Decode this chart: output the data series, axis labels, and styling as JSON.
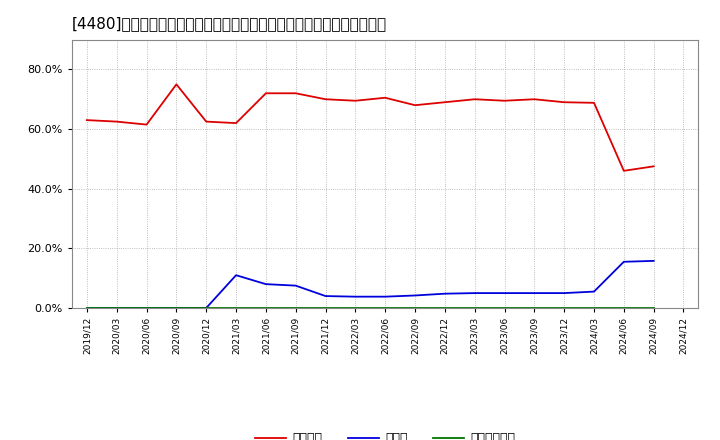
{
  "title": "[4480]　自己資本、のれん、繰延税金資産の総資産に対する比率の推移",
  "x_labels": [
    "2019/12",
    "2020/03",
    "2020/06",
    "2020/09",
    "2020/12",
    "2021/03",
    "2021/06",
    "2021/09",
    "2021/12",
    "2022/03",
    "2022/06",
    "2022/09",
    "2022/12",
    "2023/03",
    "2023/06",
    "2023/09",
    "2023/12",
    "2024/03",
    "2024/06",
    "2024/09",
    "2024/12"
  ],
  "jikoshihon": [
    0.63,
    0.625,
    0.615,
    0.75,
    0.625,
    0.62,
    0.72,
    0.72,
    0.7,
    0.695,
    0.705,
    0.68,
    0.69,
    0.7,
    0.695,
    0.7,
    0.69,
    0.688,
    0.46,
    0.475,
    null
  ],
  "noren": [
    0.0,
    0.0,
    0.0,
    0.0,
    0.0,
    0.11,
    0.08,
    0.075,
    0.04,
    0.038,
    0.038,
    0.042,
    0.048,
    0.05,
    0.05,
    0.05,
    0.05,
    0.055,
    0.155,
    0.158,
    null
  ],
  "kurinobe": [
    0.0,
    0.0,
    0.0,
    0.0,
    0.0,
    0.0,
    0.0,
    0.0,
    0.0,
    0.0,
    0.0,
    0.0,
    0.0,
    0.0,
    0.0,
    0.0,
    0.0,
    0.0,
    0.0,
    0.0,
    null
  ],
  "line_colors": {
    "jikoshihon": "#dd0000",
    "noren": "#0000dd",
    "kurinobe": "#007700"
  },
  "legend_labels": {
    "jikoshihon": "自己資本",
    "noren": "のれん",
    "kurinobe": "繰延税金資産"
  },
  "ylim": [
    0.0,
    0.9
  ],
  "yticks": [
    0.0,
    0.2,
    0.4,
    0.6,
    0.8
  ],
  "bg_color": "#ffffff",
  "plot_bg_color": "#ffffff",
  "grid_color": "#aaaaaa",
  "title_fontsize": 11
}
